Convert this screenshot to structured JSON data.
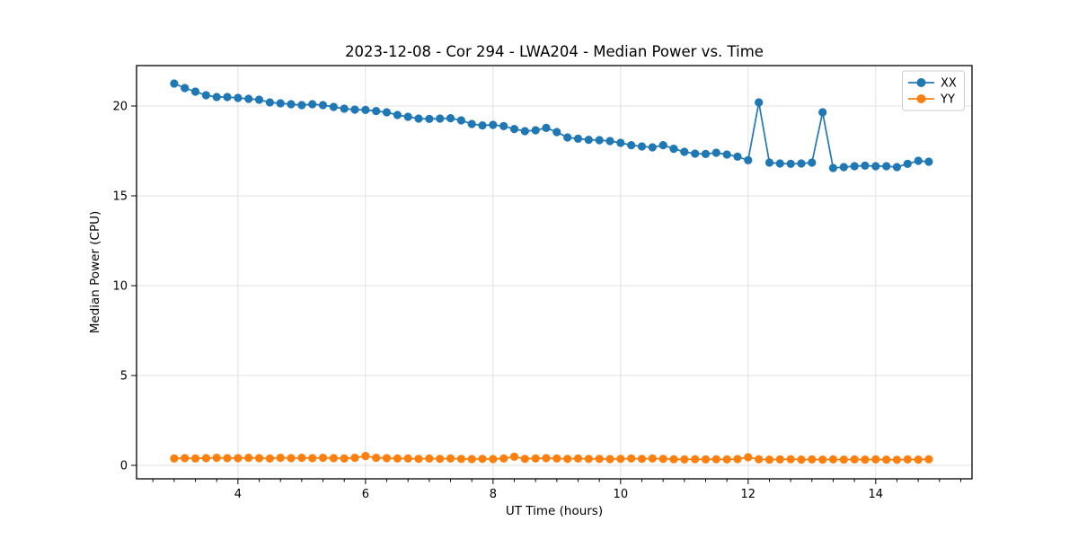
{
  "chart_data": {
    "type": "line",
    "title": "2023-12-08 - Cor 294 - LWA204 - Median Power vs. Time",
    "xlabel": "UT Time (hours)",
    "ylabel": "Median Power (CPU)",
    "xlim": [
      2.41,
      15.51
    ],
    "ylim": [
      -0.75,
      22.25
    ],
    "xticks": [
      4,
      6,
      8,
      10,
      12,
      14
    ],
    "yticks": [
      0,
      5,
      10,
      15,
      20
    ],
    "x_minor_tick_step": 0.3333,
    "grid": true,
    "grid_color": "#e0e0e0",
    "legend": {
      "position": "upper right",
      "entries": [
        "XX",
        "YY"
      ]
    },
    "x": [
      3.0,
      3.167,
      3.333,
      3.5,
      3.667,
      3.833,
      4.0,
      4.167,
      4.333,
      4.5,
      4.667,
      4.833,
      5.0,
      5.167,
      5.333,
      5.5,
      5.667,
      5.833,
      6.0,
      6.167,
      6.333,
      6.5,
      6.667,
      6.833,
      7.0,
      7.167,
      7.333,
      7.5,
      7.667,
      7.833,
      8.0,
      8.167,
      8.333,
      8.5,
      8.667,
      8.833,
      9.0,
      9.167,
      9.333,
      9.5,
      9.667,
      9.833,
      10.0,
      10.167,
      10.333,
      10.5,
      10.667,
      10.833,
      11.0,
      11.167,
      11.333,
      11.5,
      11.667,
      11.833,
      12.0,
      12.167,
      12.333,
      12.5,
      12.667,
      12.833,
      13.0,
      13.167,
      13.333,
      13.5,
      13.667,
      13.833,
      14.0,
      14.167,
      14.333,
      14.5,
      14.667,
      14.833
    ],
    "series": [
      {
        "name": "XX",
        "color": "#1f77b4",
        "values": [
          21.25,
          21.0,
          20.8,
          20.6,
          20.5,
          20.5,
          20.45,
          20.4,
          20.35,
          20.2,
          20.15,
          20.1,
          20.05,
          20.1,
          20.05,
          19.95,
          19.85,
          19.8,
          19.78,
          19.72,
          19.65,
          19.5,
          19.4,
          19.3,
          19.28,
          19.3,
          19.32,
          19.2,
          19.0,
          18.92,
          18.95,
          18.88,
          18.72,
          18.6,
          18.65,
          18.78,
          18.55,
          18.25,
          18.18,
          18.12,
          18.1,
          18.05,
          17.95,
          17.82,
          17.75,
          17.7,
          17.82,
          17.62,
          17.45,
          17.35,
          17.33,
          17.4,
          17.3,
          17.18,
          16.98,
          20.2,
          16.85,
          16.8,
          16.78,
          16.8,
          16.85,
          19.65,
          16.55,
          16.6,
          16.65,
          16.68,
          16.65,
          16.65,
          16.6,
          16.78,
          16.95,
          16.9
        ]
      },
      {
        "name": "YY",
        "color": "#ff7f0e",
        "values": [
          0.38,
          0.4,
          0.38,
          0.4,
          0.42,
          0.4,
          0.4,
          0.42,
          0.4,
          0.38,
          0.42,
          0.4,
          0.42,
          0.4,
          0.42,
          0.4,
          0.38,
          0.42,
          0.52,
          0.42,
          0.4,
          0.38,
          0.38,
          0.36,
          0.38,
          0.36,
          0.38,
          0.36,
          0.35,
          0.36,
          0.35,
          0.38,
          0.48,
          0.36,
          0.38,
          0.4,
          0.38,
          0.36,
          0.38,
          0.36,
          0.36,
          0.35,
          0.36,
          0.38,
          0.36,
          0.38,
          0.36,
          0.34,
          0.33,
          0.34,
          0.33,
          0.34,
          0.33,
          0.35,
          0.45,
          0.34,
          0.32,
          0.33,
          0.34,
          0.32,
          0.33,
          0.32,
          0.33,
          0.32,
          0.33,
          0.32,
          0.33,
          0.32,
          0.31,
          0.33,
          0.32,
          0.34
        ]
      }
    ]
  }
}
